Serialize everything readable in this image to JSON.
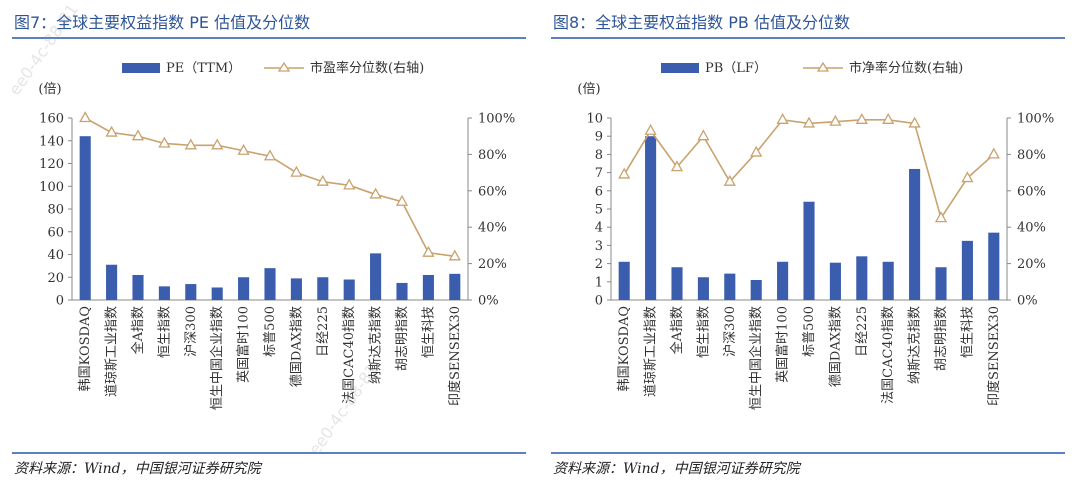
{
  "watermark": "ee0-4c-88-81",
  "source_label": "资料来源：Wind，中国银河证券研究院",
  "chart_data": [
    {
      "type": "bar+line",
      "title": "图7：全球主要权益指数 PE 估值及分位数",
      "y_unit_label": "(倍)",
      "categories": [
        "韩国KOSDAQ",
        "道琼斯工业指数",
        "全A指数",
        "恒生指数",
        "沪深300",
        "恒生中国企业指数",
        "英国富时100",
        "标普500",
        "德国DAX指数",
        "日经225",
        "法国CAC40指数",
        "纳斯达克指数",
        "胡志明指数",
        "恒生科技",
        "印度SENSEX30"
      ],
      "bar_series": {
        "name": "PE（TTM）",
        "values": [
          144,
          31,
          22,
          12,
          14,
          11,
          20,
          28,
          19,
          20,
          18,
          41,
          15,
          22,
          23
        ]
      },
      "line_series": {
        "name": "市盈率分位数(右轴)",
        "values": [
          100,
          92,
          90,
          86,
          85,
          85,
          82,
          79,
          70,
          65,
          63,
          58,
          54,
          26,
          24
        ]
      },
      "y_left": {
        "min": 0,
        "max": 160,
        "step": 20,
        "ticks": [
          "0",
          "20",
          "40",
          "60",
          "80",
          "100",
          "120",
          "140",
          "160"
        ]
      },
      "y_right": {
        "min": 0,
        "max": 100,
        "step": 20,
        "ticks": [
          "0%",
          "20%",
          "40%",
          "60%",
          "80%",
          "100%"
        ]
      },
      "colors": {
        "bar": "#3A5DAE",
        "line": "#C9A26E",
        "axis": "#888888",
        "text": "#333333"
      }
    },
    {
      "type": "bar+line",
      "title": "图8：全球主要权益指数 PB 估值及分位数",
      "y_unit_label": "(倍)",
      "categories": [
        "韩国KOSDAQ",
        "道琼斯工业指数",
        "全A指数",
        "恒生指数",
        "沪深300",
        "恒生中国企业指数",
        "英国富时100",
        "标普500",
        "德国DAX指数",
        "日经225",
        "法国CAC40指数",
        "纳斯达克指数",
        "胡志明指数",
        "恒生科技",
        "印度SENSEX30"
      ],
      "bar_series": {
        "name": "PB（LF）",
        "values": [
          2.1,
          9.0,
          1.8,
          1.25,
          1.45,
          1.1,
          2.1,
          5.4,
          2.05,
          2.4,
          2.1,
          7.2,
          1.8,
          3.25,
          3.7
        ]
      },
      "line_series": {
        "name": "市净率分位数(右轴)",
        "values": [
          69,
          93,
          73,
          90,
          65,
          81,
          99,
          97,
          98,
          99,
          99,
          97,
          45,
          67,
          80
        ]
      },
      "y_left": {
        "min": 0,
        "max": 10,
        "step": 1,
        "ticks": [
          "0",
          "1",
          "2",
          "3",
          "4",
          "5",
          "6",
          "7",
          "8",
          "9",
          "10"
        ]
      },
      "y_right": {
        "min": 0,
        "max": 100,
        "step": 20,
        "ticks": [
          "0%",
          "20%",
          "40%",
          "60%",
          "80%",
          "100%"
        ]
      },
      "colors": {
        "bar": "#3A5DAE",
        "line": "#C9A26E",
        "axis": "#888888",
        "text": "#333333"
      }
    }
  ]
}
